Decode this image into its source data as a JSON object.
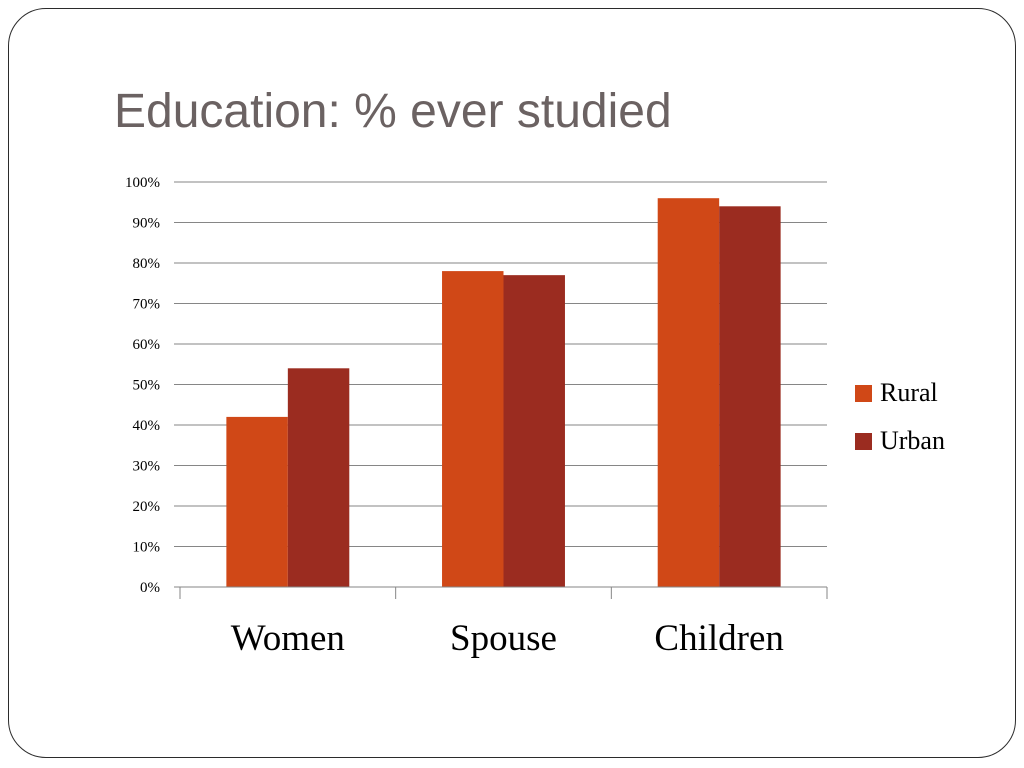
{
  "slide": {
    "title": "Education: % ever studied"
  },
  "chart_data": {
    "type": "bar",
    "title": "",
    "xlabel": "",
    "ylabel": "",
    "categories": [
      "Women",
      "Spouse",
      "Children"
    ],
    "series": [
      {
        "name": "Rural",
        "values": [
          0.42,
          0.78,
          0.96
        ],
        "color": "#d04817"
      },
      {
        "name": "Urban",
        "values": [
          0.54,
          0.77,
          0.94
        ],
        "color": "#9b2c20"
      }
    ],
    "ylim": [
      0,
      1
    ],
    "yticks": [
      0,
      0.1,
      0.2,
      0.3,
      0.4,
      0.5,
      0.6,
      0.7,
      0.8,
      0.9,
      1.0
    ],
    "ytick_labels": [
      "0%",
      "10%",
      "20%",
      "30%",
      "40%",
      "50%",
      "60%",
      "70%",
      "80%",
      "90%",
      "100%"
    ],
    "grid": true,
    "legend_position": "right",
    "gridline_color": "#868686"
  }
}
